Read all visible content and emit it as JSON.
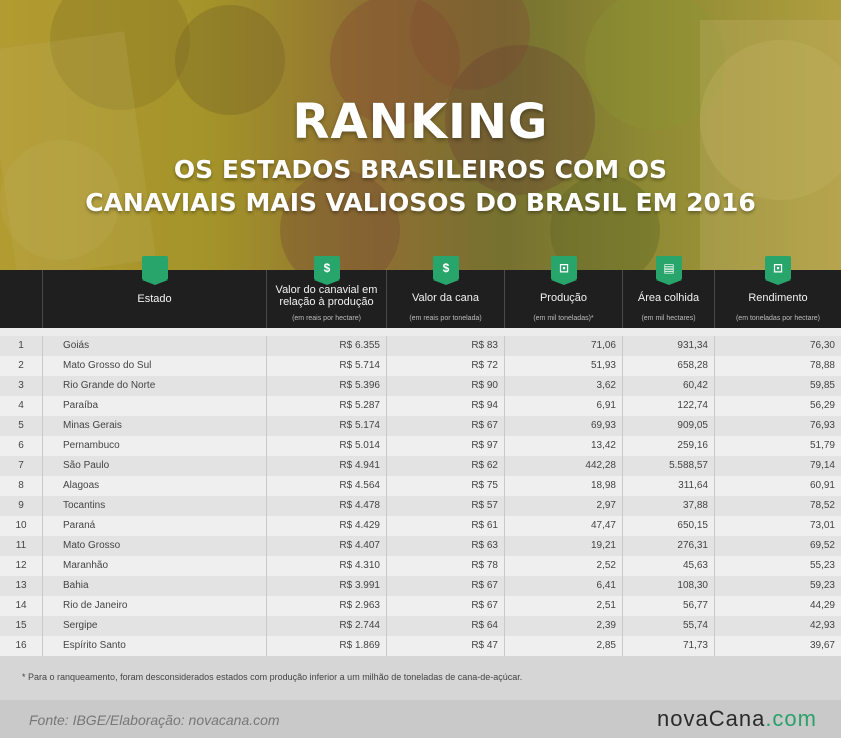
{
  "header": {
    "title": "RANKING",
    "subtitle_line1": "OS ESTADOS BRASILEIROS COM OS",
    "subtitle_line2": "CANAVIAIS MAIS VALIOSOS DO BRASIL EM 2016"
  },
  "columns": [
    {
      "label": "",
      "unit": ""
    },
    {
      "label": "Estado",
      "unit": ""
    },
    {
      "label": "Valor do canavial em relação à produção",
      "unit": "(em reais por hectare)",
      "icon": "dollar-icon"
    },
    {
      "label": "Valor da cana",
      "unit": "(em reais por tonelada)",
      "icon": "dollar-icon"
    },
    {
      "label": "Produção",
      "unit": "(em mil toneladas)*",
      "icon": "weight-icon"
    },
    {
      "label": "Área colhida",
      "unit": "(em mil hectares)",
      "icon": "map-icon"
    },
    {
      "label": "Rendimento",
      "unit": "(em toneladas por hectare)",
      "icon": "weight-icon"
    }
  ],
  "colors": {
    "header_bg": "#1f1f1f",
    "badge": "#27a56b",
    "brand_accent": "#2aa06a"
  },
  "chart_data": {
    "type": "table",
    "headers": [
      "",
      "Estado",
      "Valor do canavial em relação à produção",
      "Valor da cana",
      "Produção",
      "Área colhida",
      "Rendimento"
    ],
    "rows": [
      [
        "1",
        "Goiás",
        "R$ 6.355",
        "R$ 83",
        "71,06",
        "931,34",
        "76,30"
      ],
      [
        "2",
        "Mato Grosso do Sul",
        "R$ 5.714",
        "R$ 72",
        "51,93",
        "658,28",
        "78,88"
      ],
      [
        "3",
        "Rio Grande do Norte",
        "R$ 5.396",
        "R$ 90",
        "3,62",
        "60,42",
        "59,85"
      ],
      [
        "4",
        "Paraíba",
        "R$ 5.287",
        "R$ 94",
        "6,91",
        "122,74",
        "56,29"
      ],
      [
        "5",
        "Minas Gerais",
        "R$ 5.174",
        "R$ 67",
        "69,93",
        "909,05",
        "76,93"
      ],
      [
        "6",
        "Pernambuco",
        "R$ 5.014",
        "R$ 97",
        "13,42",
        "259,16",
        "51,79"
      ],
      [
        "7",
        "São Paulo",
        "R$ 4.941",
        "R$ 62",
        "442,28",
        "5.588,57",
        "79,14"
      ],
      [
        "8",
        "Alagoas",
        "R$ 4.564",
        "R$ 75",
        "18,98",
        "311,64",
        "60,91"
      ],
      [
        "9",
        "Tocantins",
        "R$ 4.478",
        "R$ 57",
        "2,97",
        "37,88",
        "78,52"
      ],
      [
        "10",
        "Paraná",
        "R$ 4.429",
        "R$ 61",
        "47,47",
        "650,15",
        "73,01"
      ],
      [
        "11",
        "Mato Grosso",
        "R$ 4.407",
        "R$ 63",
        "19,21",
        "276,31",
        "69,52"
      ],
      [
        "12",
        "Maranhão",
        "R$ 4.310",
        "R$ 78",
        "2,52",
        "45,63",
        "55,23"
      ],
      [
        "13",
        "Bahia",
        "R$ 3.991",
        "R$ 67",
        "6,41",
        "108,30",
        "59,23"
      ],
      [
        "14",
        "Rio de Janeiro",
        "R$ 2.963",
        "R$ 67",
        "2,51",
        "56,77",
        "44,29"
      ],
      [
        "15",
        "Sergipe",
        "R$ 2.744",
        "R$ 64",
        "2,39",
        "55,74",
        "42,93"
      ],
      [
        "16",
        "Espírito Santo",
        "R$ 1.869",
        "R$ 47",
        "2,85",
        "71,73",
        "39,67"
      ]
    ]
  },
  "footnote": "* Para o ranqueamento, foram desconsiderados estados com produção inferior a um milhão de toneladas de cana-de-açúcar.",
  "source": "Fonte: IBGE/Elaboração: novacana.com",
  "logo": {
    "main": "novaCana",
    "suffix": ".com"
  }
}
